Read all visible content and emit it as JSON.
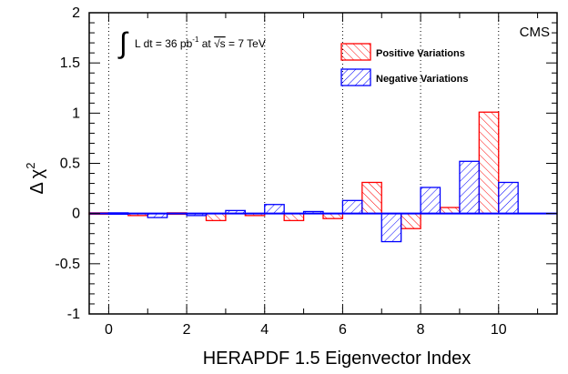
{
  "chart_data": {
    "type": "bar",
    "experiment": "CMS",
    "lumi_integral": "∫",
    "lumi_text": "L dt = 36 pb",
    "lumi_exp": "-1",
    "lumi_mid": " at ",
    "lumi_sqrt": "√s",
    "lumi_end": " = 7 TeV",
    "xlabel": "HERAPDF 1.5 Eigenvector Index",
    "ylabel_delta": "Δ",
    "ylabel_chi": "χ",
    "ylabel_exp": "2",
    "xlim": [
      -0.5,
      11.5
    ],
    "ylim": [
      -1,
      2
    ],
    "x_ticks": [
      "0",
      "2",
      "4",
      "6",
      "8",
      "10"
    ],
    "y_ticks": [
      "-1",
      "-0.5",
      "0",
      "0.5",
      "1",
      "1.5",
      "2"
    ],
    "series": [
      {
        "name": "Positive Variations",
        "color": "#ff0000",
        "values": [
          0.0,
          -0.02,
          0.0,
          -0.07,
          -0.02,
          -0.07,
          -0.05,
          0.31,
          -0.15,
          0.06,
          1.01
        ]
      },
      {
        "name": "Negative Variations",
        "color": "#0000ff",
        "values": [
          0.0,
          -0.04,
          -0.02,
          0.03,
          0.09,
          0.02,
          0.13,
          -0.28,
          0.26,
          0.52,
          0.31
        ]
      }
    ],
    "x": [
      0,
      1,
      2,
      3,
      4,
      5,
      6,
      7,
      8,
      9,
      10
    ],
    "grid": "dotted vertical lines at even indices",
    "legend_position": "top-right"
  }
}
